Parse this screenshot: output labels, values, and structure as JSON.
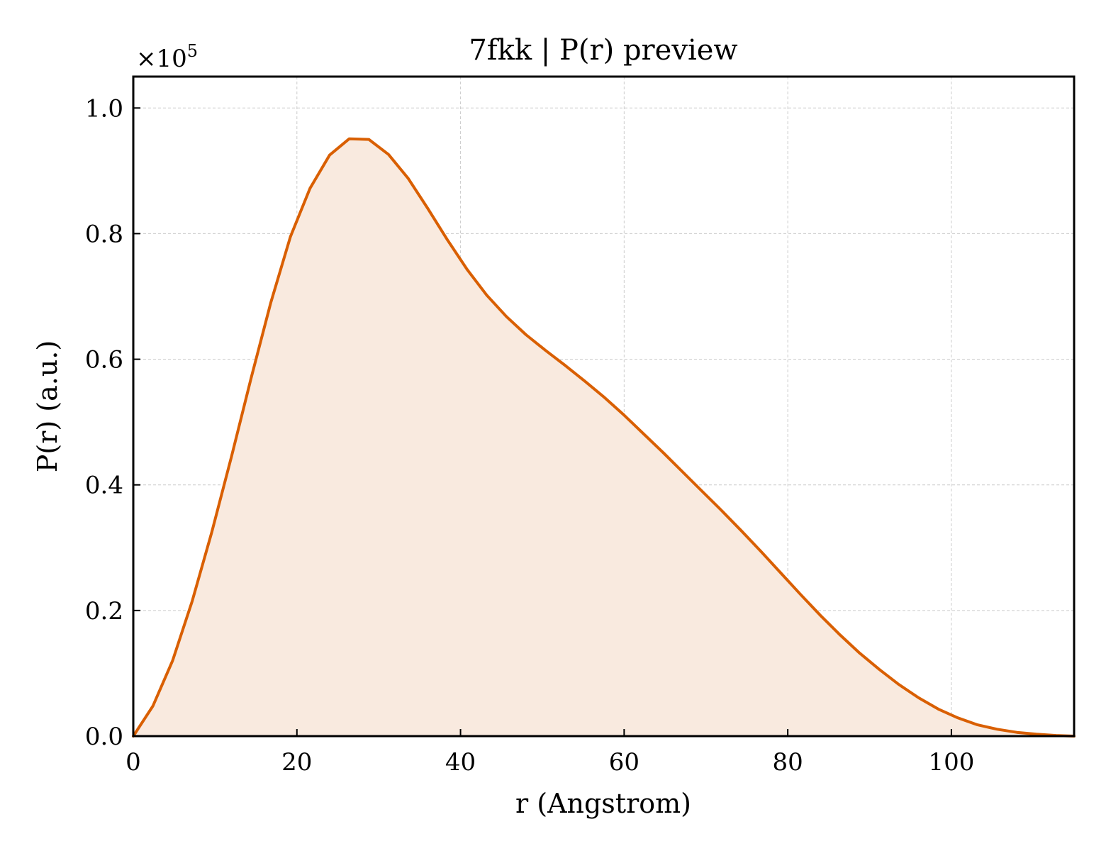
{
  "chart_data": {
    "type": "area",
    "title": "7fkk | P(r) preview",
    "xlabel": "r (Angstrom)",
    "ylabel": "P(r) (a.u.)",
    "y_multiplier_label": "×10",
    "y_multiplier_exponent": "5",
    "xlim": [
      0,
      115
    ],
    "ylim": [
      0,
      1.05
    ],
    "x_ticks": [
      0,
      20,
      40,
      60,
      80,
      100
    ],
    "x_tick_labels": [
      "0",
      "20",
      "40",
      "60",
      "80",
      "100"
    ],
    "y_ticks": [
      0.0,
      0.2,
      0.4,
      0.6,
      0.8,
      1.0
    ],
    "y_tick_labels": [
      "0.0",
      "0.2",
      "0.4",
      "0.6",
      "0.8",
      "1.0"
    ],
    "grid": true,
    "colors": {
      "line": "#d95f02",
      "fill": "#f9eadf",
      "grid": "#cccccc"
    },
    "series": [
      {
        "x": [
          0,
          2.4,
          4.8,
          7.2,
          9.6,
          12.0,
          14.4,
          16.8,
          19.2,
          21.6,
          24.0,
          26.4,
          28.8,
          31.2,
          33.6,
          36.0,
          38.4,
          40.8,
          43.2,
          45.6,
          48.0,
          50.4,
          52.8,
          55.2,
          57.6,
          60.0,
          62.4,
          64.8,
          67.2,
          69.6,
          72.0,
          74.4,
          76.8,
          79.2,
          81.6,
          84.0,
          86.4,
          88.8,
          91.2,
          93.6,
          96.0,
          98.4,
          100.8,
          103.2,
          105.6,
          108.0,
          110.4,
          112.8,
          115.0
        ],
        "values": [
          0.0,
          0.048,
          0.12,
          0.215,
          0.325,
          0.445,
          0.57,
          0.69,
          0.795,
          0.872,
          0.925,
          0.951,
          0.95,
          0.926,
          0.888,
          0.84,
          0.79,
          0.743,
          0.702,
          0.668,
          0.639,
          0.614,
          0.59,
          0.565,
          0.539,
          0.511,
          0.481,
          0.451,
          0.42,
          0.389,
          0.358,
          0.326,
          0.293,
          0.259,
          0.225,
          0.192,
          0.161,
          0.132,
          0.106,
          0.082,
          0.061,
          0.043,
          0.029,
          0.018,
          0.011,
          0.006,
          0.003,
          0.001,
          0.0
        ]
      }
    ]
  }
}
